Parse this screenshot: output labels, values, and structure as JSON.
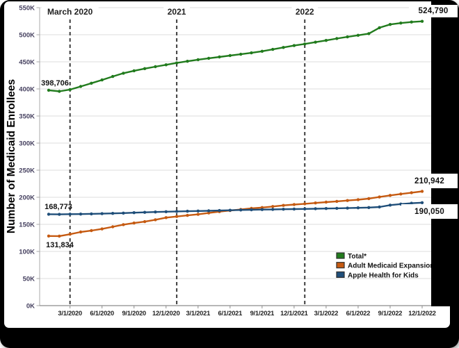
{
  "colors": {
    "frame": "#000000",
    "panel": "#ffffff",
    "gridline": "#dcdcdc",
    "axis": "#8c8c8c",
    "y_axis_line": "#a8a8a8",
    "event_line": "#3d3d3d",
    "tick_label_y": "#45405f",
    "tick_label_x": "#1f1f1f",
    "annotation_text": "#111111",
    "legend_text": "#121212",
    "total": "#217b1d",
    "expansion": "#c55a11",
    "kids": "#1f4e79"
  },
  "chart_data": {
    "type": "line",
    "title": "",
    "xlabel": "",
    "ylabel": "Number of Medicaid Enrollees",
    "ylim": [
      0,
      550000
    ],
    "grid": "horizontal",
    "legend_position": "bottom-right",
    "y_ticks": [
      "0K",
      "50K",
      "100K",
      "150K",
      "200K",
      "250K",
      "300K",
      "350K",
      "400K",
      "450K",
      "500K",
      "550K"
    ],
    "x": [
      "1/1/2020",
      "2/1/2020",
      "3/1/2020",
      "4/1/2020",
      "5/1/2020",
      "6/1/2020",
      "7/1/2020",
      "8/1/2020",
      "9/1/2020",
      "10/1/2020",
      "11/1/2020",
      "12/1/2020",
      "1/1/2021",
      "2/1/2021",
      "3/1/2021",
      "4/1/2021",
      "5/1/2021",
      "6/1/2021",
      "7/1/2021",
      "8/1/2021",
      "9/1/2021",
      "10/1/2021",
      "11/1/2021",
      "12/1/2021",
      "1/1/2022",
      "2/1/2022",
      "3/1/2022",
      "4/1/2022",
      "5/1/2022",
      "6/1/2022",
      "7/1/2022",
      "8/1/2022",
      "9/1/2022",
      "10/1/2022",
      "11/1/2022",
      "12/1/2022"
    ],
    "x_tick_labels": [
      "3/1/2020",
      "6/1/2020",
      "9/1/2020",
      "12/1/2020",
      "3/1/2021",
      "6/1/2021",
      "9/1/2021",
      "12/1/2021",
      "3/1/2022",
      "6/1/2022",
      "9/1/2022",
      "12/1/2022"
    ],
    "series": [
      {
        "name": "Total*",
        "color": "#217b1d",
        "values": [
          397500,
          395500,
          398706,
          404500,
          410500,
          416500,
          423000,
          429000,
          433500,
          437500,
          441000,
          444500,
          448000,
          451000,
          454000,
          456500,
          459000,
          461500,
          464000,
          466500,
          469500,
          473000,
          476500,
          480000,
          483000,
          486300,
          489500,
          493000,
          496000,
          499000,
          502000,
          513000,
          519000,
          521500,
          523500,
          524790
        ]
      },
      {
        "name": "Adult Medicaid Expansion",
        "color": "#c55a11",
        "values": [
          128500,
          128300,
          131834,
          135900,
          138500,
          141500,
          145500,
          149500,
          152500,
          155000,
          158500,
          162500,
          164500,
          166500,
          168500,
          171000,
          173500,
          175500,
          177500,
          179500,
          181000,
          183000,
          185000,
          186500,
          188000,
          189500,
          191000,
          192500,
          194000,
          195500,
          197500,
          200500,
          203500,
          206000,
          208500,
          210942
        ]
      },
      {
        "name": "Apple Health for Kids",
        "color": "#1f4e79",
        "values": [
          168773,
          168500,
          168800,
          169000,
          169300,
          169700,
          170200,
          170800,
          171500,
          172200,
          172800,
          173300,
          173800,
          174200,
          174600,
          175000,
          175500,
          176000,
          176500,
          176900,
          177300,
          177600,
          177900,
          178200,
          178500,
          178800,
          179200,
          179600,
          180000,
          180500,
          181000,
          182000,
          185500,
          187500,
          189000,
          190050
        ]
      }
    ],
    "event_lines": [
      {
        "label": "March 2020",
        "at": "3/1/2020"
      },
      {
        "label": "2021",
        "at": "1/1/2021"
      },
      {
        "label": "2022",
        "at": "1/1/2022"
      }
    ],
    "annotations": {
      "total_start": {
        "text": "398,706"
      },
      "total_end": {
        "text": "524,790"
      },
      "expansion_start": {
        "text": "131,834"
      },
      "expansion_end": {
        "text": "210,942"
      },
      "kids_start": {
        "text": "168,773"
      },
      "kids_end": {
        "text": "190,050"
      }
    }
  }
}
